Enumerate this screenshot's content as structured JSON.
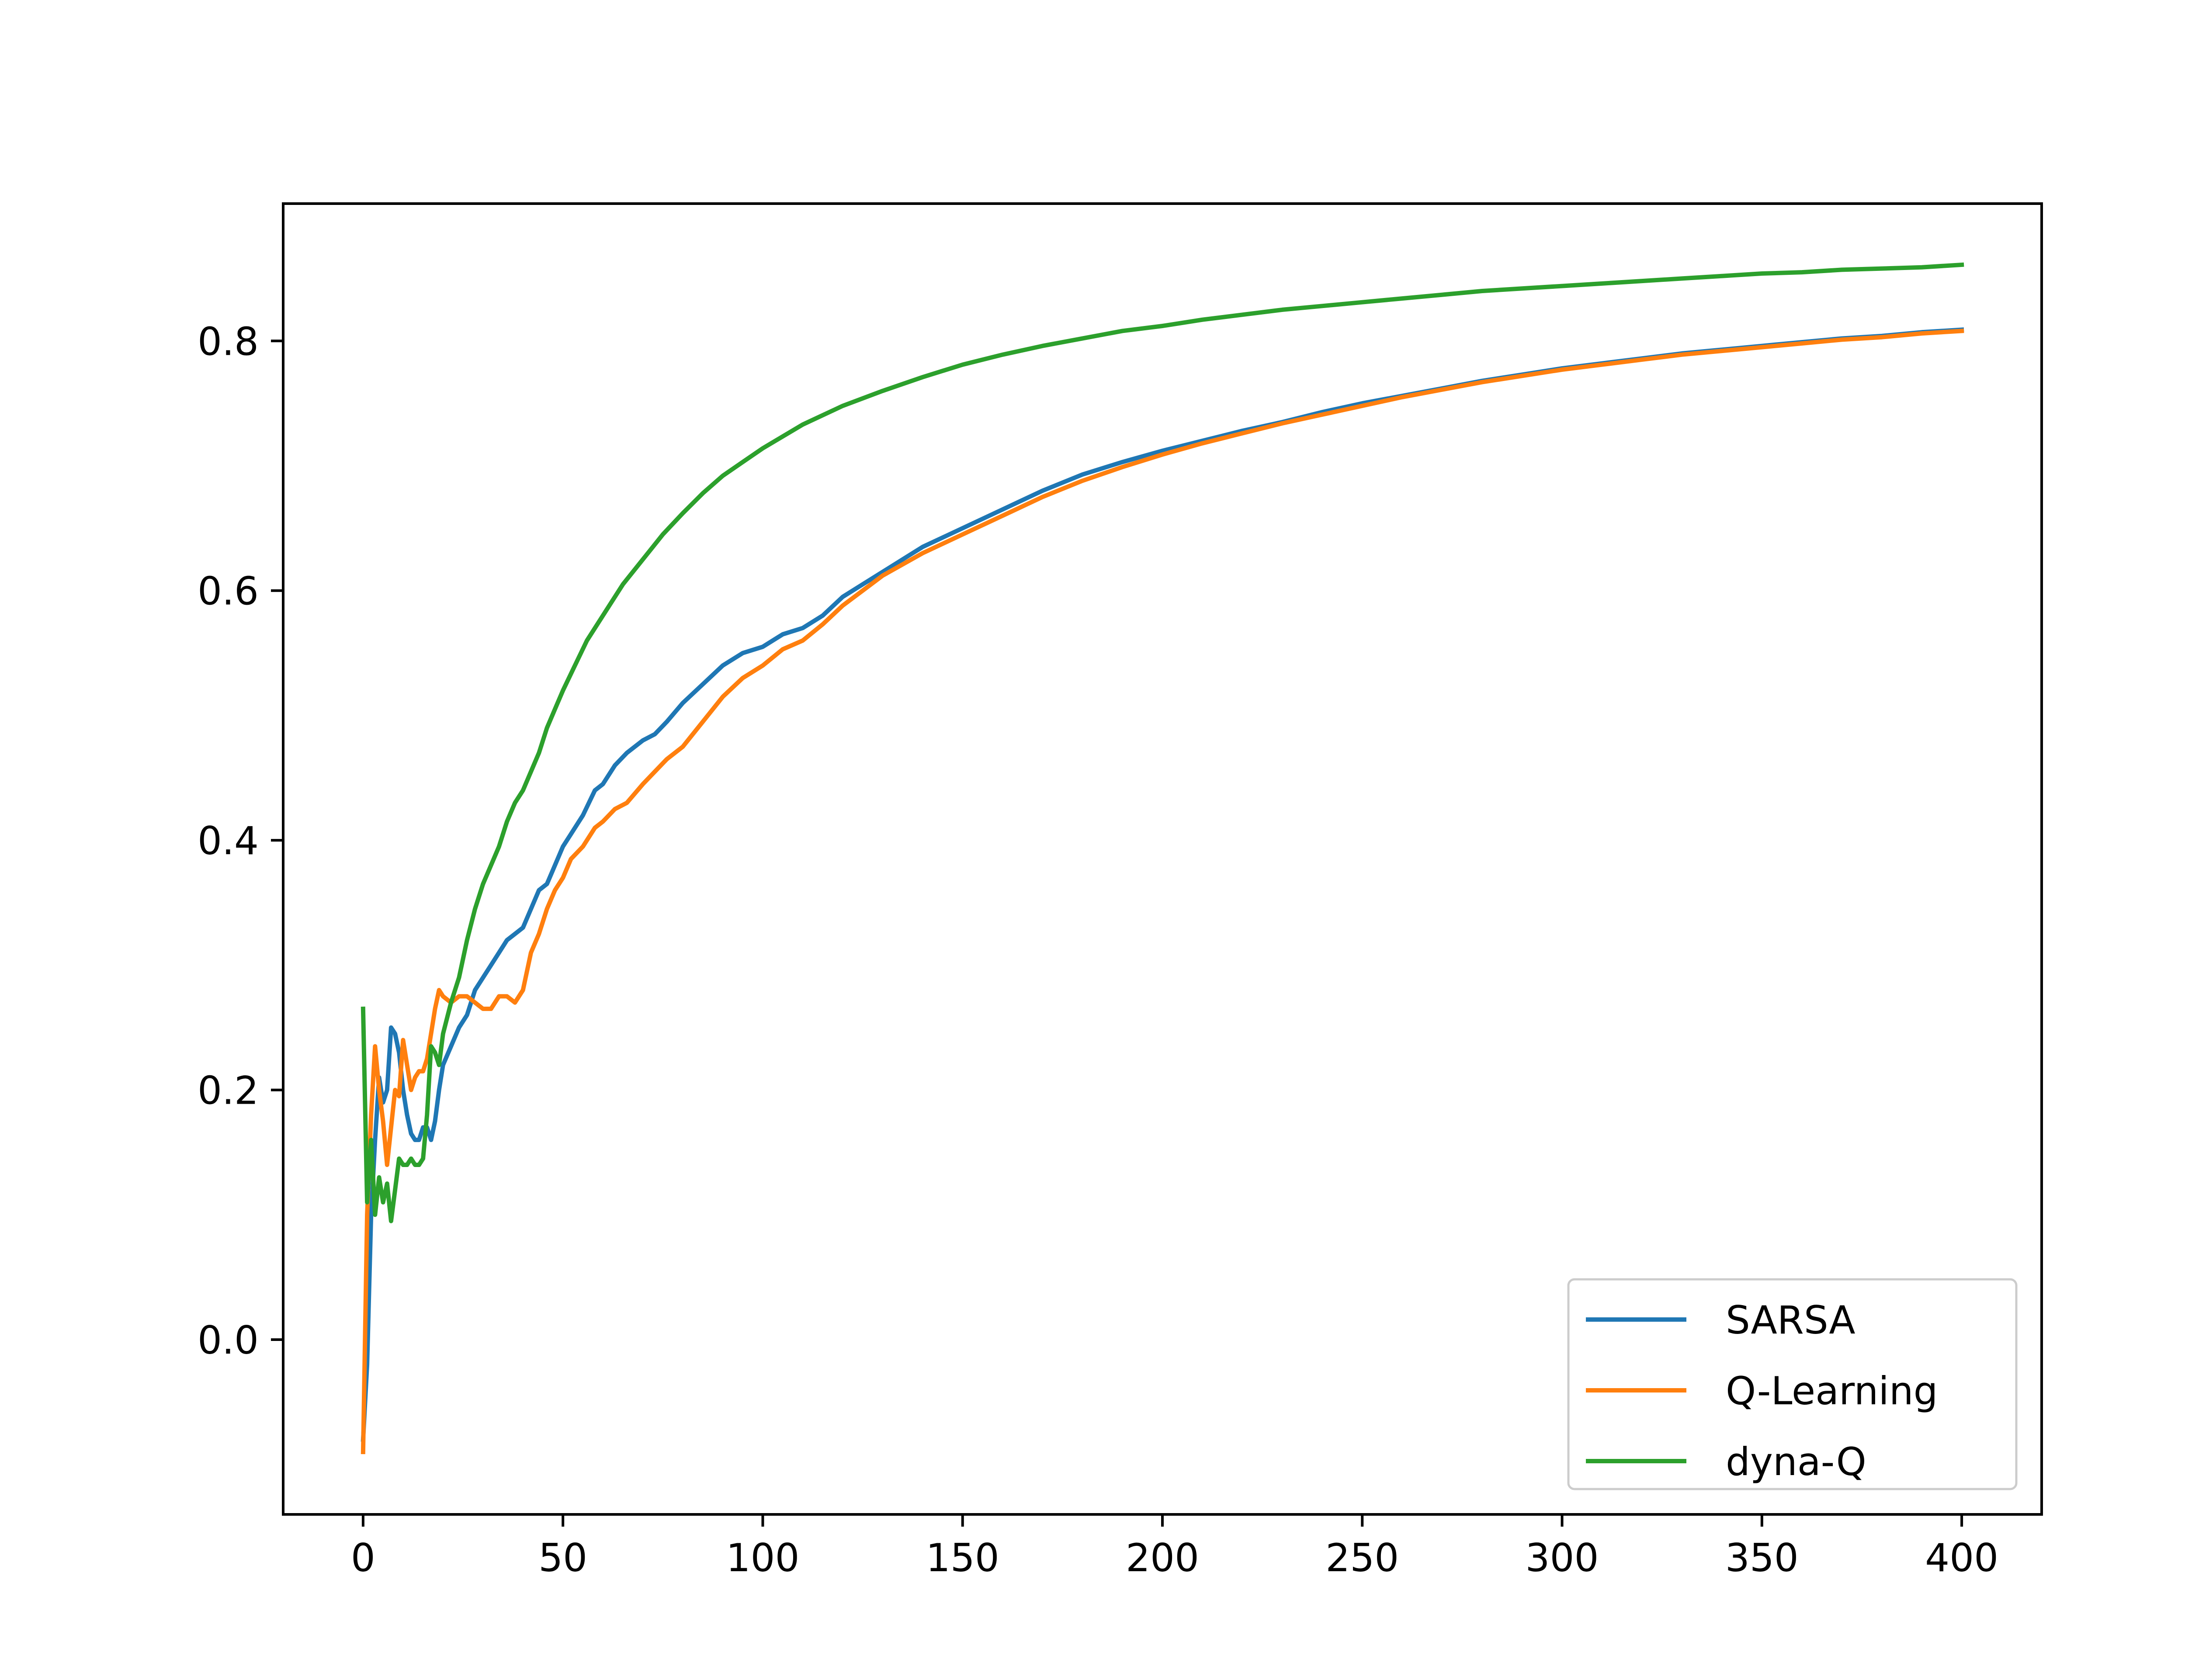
{
  "chart_data": {
    "type": "line",
    "title": "",
    "xlabel": "",
    "ylabel": "",
    "xlim": [
      -20,
      420
    ],
    "ylim": [
      -0.14,
      0.91
    ],
    "x_ticks": [
      0,
      50,
      100,
      150,
      200,
      250,
      300,
      350,
      400
    ],
    "x_tick_labels": [
      "0",
      "50",
      "100",
      "150",
      "200",
      "250",
      "300",
      "350",
      "400"
    ],
    "y_ticks": [
      0.0,
      0.2,
      0.4,
      0.6,
      0.8
    ],
    "y_tick_labels": [
      "0.0",
      "0.2",
      "0.4",
      "0.6",
      "0.8"
    ],
    "grid": false,
    "legend_position": "bottom-right",
    "series": [
      {
        "name": "SARSA",
        "color": "#1f77b4",
        "points": [
          [
            0,
            -0.08
          ],
          [
            1,
            -0.02
          ],
          [
            2,
            0.1
          ],
          [
            3,
            0.16
          ],
          [
            4,
            0.21
          ],
          [
            5,
            0.19
          ],
          [
            6,
            0.2
          ],
          [
            7,
            0.25
          ],
          [
            8,
            0.245
          ],
          [
            9,
            0.23
          ],
          [
            10,
            0.2
          ],
          [
            11,
            0.18
          ],
          [
            12,
            0.165
          ],
          [
            13,
            0.16
          ],
          [
            14,
            0.16
          ],
          [
            15,
            0.17
          ],
          [
            16,
            0.17
          ],
          [
            17,
            0.16
          ],
          [
            18,
            0.175
          ],
          [
            19,
            0.2
          ],
          [
            20,
            0.22
          ],
          [
            22,
            0.235
          ],
          [
            24,
            0.25
          ],
          [
            26,
            0.26
          ],
          [
            28,
            0.28
          ],
          [
            30,
            0.29
          ],
          [
            32,
            0.3
          ],
          [
            34,
            0.31
          ],
          [
            36,
            0.32
          ],
          [
            38,
            0.325
          ],
          [
            40,
            0.33
          ],
          [
            42,
            0.345
          ],
          [
            44,
            0.36
          ],
          [
            46,
            0.365
          ],
          [
            48,
            0.38
          ],
          [
            50,
            0.395
          ],
          [
            52,
            0.405
          ],
          [
            55,
            0.42
          ],
          [
            58,
            0.44
          ],
          [
            60,
            0.445
          ],
          [
            63,
            0.46
          ],
          [
            66,
            0.47
          ],
          [
            70,
            0.48
          ],
          [
            73,
            0.485
          ],
          [
            76,
            0.495
          ],
          [
            80,
            0.51
          ],
          [
            85,
            0.525
          ],
          [
            90,
            0.54
          ],
          [
            95,
            0.55
          ],
          [
            100,
            0.555
          ],
          [
            105,
            0.565
          ],
          [
            110,
            0.57
          ],
          [
            115,
            0.58
          ],
          [
            120,
            0.595
          ],
          [
            125,
            0.605
          ],
          [
            130,
            0.615
          ],
          [
            140,
            0.635
          ],
          [
            150,
            0.65
          ],
          [
            160,
            0.665
          ],
          [
            170,
            0.68
          ],
          [
            180,
            0.693
          ],
          [
            190,
            0.703
          ],
          [
            200,
            0.712
          ],
          [
            210,
            0.72
          ],
          [
            220,
            0.728
          ],
          [
            230,
            0.735
          ],
          [
            240,
            0.743
          ],
          [
            250,
            0.75
          ],
          [
            260,
            0.756
          ],
          [
            270,
            0.762
          ],
          [
            280,
            0.768
          ],
          [
            290,
            0.773
          ],
          [
            300,
            0.778
          ],
          [
            310,
            0.782
          ],
          [
            320,
            0.786
          ],
          [
            330,
            0.79
          ],
          [
            340,
            0.793
          ],
          [
            350,
            0.796
          ],
          [
            360,
            0.799
          ],
          [
            370,
            0.802
          ],
          [
            380,
            0.804
          ],
          [
            390,
            0.807
          ],
          [
            400,
            0.809
          ]
        ]
      },
      {
        "name": "Q-Learning",
        "color": "#ff7f0e",
        "points": [
          [
            0,
            -0.09
          ],
          [
            1,
            0.1
          ],
          [
            2,
            0.18
          ],
          [
            3,
            0.235
          ],
          [
            4,
            0.2
          ],
          [
            5,
            0.175
          ],
          [
            6,
            0.14
          ],
          [
            7,
            0.17
          ],
          [
            8,
            0.2
          ],
          [
            9,
            0.195
          ],
          [
            10,
            0.24
          ],
          [
            11,
            0.22
          ],
          [
            12,
            0.2
          ],
          [
            13,
            0.21
          ],
          [
            14,
            0.215
          ],
          [
            15,
            0.215
          ],
          [
            16,
            0.225
          ],
          [
            17,
            0.245
          ],
          [
            18,
            0.265
          ],
          [
            19,
            0.28
          ],
          [
            20,
            0.275
          ],
          [
            22,
            0.27
          ],
          [
            24,
            0.275
          ],
          [
            26,
            0.275
          ],
          [
            28,
            0.27
          ],
          [
            30,
            0.265
          ],
          [
            32,
            0.265
          ],
          [
            34,
            0.275
          ],
          [
            36,
            0.275
          ],
          [
            38,
            0.27
          ],
          [
            40,
            0.28
          ],
          [
            42,
            0.31
          ],
          [
            44,
            0.325
          ],
          [
            46,
            0.345
          ],
          [
            48,
            0.36
          ],
          [
            50,
            0.37
          ],
          [
            52,
            0.385
          ],
          [
            55,
            0.395
          ],
          [
            58,
            0.41
          ],
          [
            60,
            0.415
          ],
          [
            63,
            0.425
          ],
          [
            66,
            0.43
          ],
          [
            70,
            0.445
          ],
          [
            73,
            0.455
          ],
          [
            76,
            0.465
          ],
          [
            80,
            0.475
          ],
          [
            85,
            0.495
          ],
          [
            90,
            0.515
          ],
          [
            95,
            0.53
          ],
          [
            100,
            0.54
          ],
          [
            105,
            0.553
          ],
          [
            110,
            0.56
          ],
          [
            115,
            0.573
          ],
          [
            120,
            0.588
          ],
          [
            125,
            0.6
          ],
          [
            130,
            0.612
          ],
          [
            140,
            0.63
          ],
          [
            150,
            0.645
          ],
          [
            160,
            0.66
          ],
          [
            170,
            0.675
          ],
          [
            180,
            0.688
          ],
          [
            190,
            0.699
          ],
          [
            200,
            0.709
          ],
          [
            210,
            0.718
          ],
          [
            220,
            0.726
          ],
          [
            230,
            0.734
          ],
          [
            240,
            0.741
          ],
          [
            250,
            0.748
          ],
          [
            260,
            0.755
          ],
          [
            270,
            0.761
          ],
          [
            280,
            0.767
          ],
          [
            290,
            0.772
          ],
          [
            300,
            0.777
          ],
          [
            310,
            0.781
          ],
          [
            320,
            0.785
          ],
          [
            330,
            0.789
          ],
          [
            340,
            0.792
          ],
          [
            350,
            0.795
          ],
          [
            360,
            0.798
          ],
          [
            370,
            0.801
          ],
          [
            380,
            0.803
          ],
          [
            390,
            0.806
          ],
          [
            400,
            0.808
          ]
        ]
      },
      {
        "name": "dyna-Q",
        "color": "#2ca02c",
        "points": [
          [
            0,
            0.265
          ],
          [
            1,
            0.11
          ],
          [
            2,
            0.16
          ],
          [
            3,
            0.1
          ],
          [
            4,
            0.13
          ],
          [
            5,
            0.11
          ],
          [
            6,
            0.125
          ],
          [
            7,
            0.095
          ],
          [
            8,
            0.12
          ],
          [
            9,
            0.145
          ],
          [
            10,
            0.14
          ],
          [
            11,
            0.14
          ],
          [
            12,
            0.145
          ],
          [
            13,
            0.14
          ],
          [
            14,
            0.14
          ],
          [
            15,
            0.145
          ],
          [
            16,
            0.18
          ],
          [
            17,
            0.235
          ],
          [
            18,
            0.23
          ],
          [
            19,
            0.22
          ],
          [
            20,
            0.245
          ],
          [
            22,
            0.27
          ],
          [
            24,
            0.29
          ],
          [
            26,
            0.32
          ],
          [
            28,
            0.345
          ],
          [
            30,
            0.365
          ],
          [
            32,
            0.38
          ],
          [
            34,
            0.395
          ],
          [
            36,
            0.415
          ],
          [
            38,
            0.43
          ],
          [
            40,
            0.44
          ],
          [
            42,
            0.455
          ],
          [
            44,
            0.47
          ],
          [
            46,
            0.49
          ],
          [
            48,
            0.505
          ],
          [
            50,
            0.52
          ],
          [
            53,
            0.54
          ],
          [
            56,
            0.56
          ],
          [
            60,
            0.58
          ],
          [
            65,
            0.605
          ],
          [
            70,
            0.625
          ],
          [
            75,
            0.645
          ],
          [
            80,
            0.662
          ],
          [
            85,
            0.678
          ],
          [
            90,
            0.692
          ],
          [
            95,
            0.703
          ],
          [
            100,
            0.714
          ],
          [
            110,
            0.733
          ],
          [
            120,
            0.748
          ],
          [
            130,
            0.76
          ],
          [
            140,
            0.771
          ],
          [
            150,
            0.781
          ],
          [
            160,
            0.789
          ],
          [
            170,
            0.796
          ],
          [
            180,
            0.802
          ],
          [
            190,
            0.808
          ],
          [
            200,
            0.812
          ],
          [
            210,
            0.817
          ],
          [
            220,
            0.821
          ],
          [
            230,
            0.825
          ],
          [
            240,
            0.828
          ],
          [
            250,
            0.831
          ],
          [
            260,
            0.834
          ],
          [
            270,
            0.837
          ],
          [
            280,
            0.84
          ],
          [
            290,
            0.842
          ],
          [
            300,
            0.844
          ],
          [
            310,
            0.846
          ],
          [
            320,
            0.848
          ],
          [
            330,
            0.85
          ],
          [
            340,
            0.852
          ],
          [
            350,
            0.854
          ],
          [
            360,
            0.855
          ],
          [
            370,
            0.857
          ],
          [
            380,
            0.858
          ],
          [
            390,
            0.859
          ],
          [
            400,
            0.861
          ]
        ]
      }
    ]
  }
}
